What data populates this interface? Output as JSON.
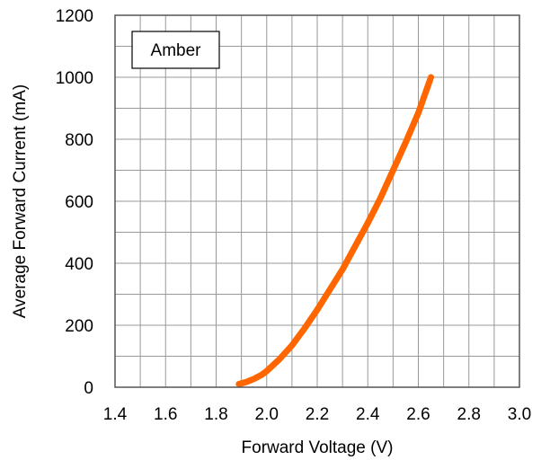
{
  "chart_data": {
    "type": "line",
    "title": "",
    "xlabel": "Forward Voltage (V)",
    "ylabel": "Average Forward Current (mA)",
    "xlim": [
      1.4,
      3.0
    ],
    "ylim": [
      0,
      1200
    ],
    "x_ticks": [
      1.4,
      1.6,
      1.8,
      2.0,
      2.2,
      2.4,
      2.6,
      2.8,
      3.0
    ],
    "x_tick_labels": [
      "1.4",
      "1.6",
      "1.8",
      "2.0",
      "2.2",
      "2.4",
      "2.6",
      "2.8",
      "3.0"
    ],
    "y_ticks": [
      0,
      200,
      400,
      600,
      800,
      1000,
      1200
    ],
    "y_tick_labels": [
      "0",
      "200",
      "400",
      "600",
      "800",
      "1000",
      "1200"
    ],
    "x_minor_step": 0.1,
    "y_minor_step": 100,
    "grid": true,
    "legend_label": "Amber",
    "legend_position": "top-left",
    "colors": {
      "series": "#ff6600",
      "grid": "#999999",
      "axis": "#555555"
    },
    "series": [
      {
        "x": [
          1.89,
          1.92,
          1.95,
          1.98,
          2.0,
          2.05,
          2.1,
          2.15,
          2.2,
          2.25,
          2.3,
          2.35,
          2.4,
          2.45,
          2.5,
          2.55,
          2.6,
          2.65
        ],
        "y": [
          10,
          17,
          27,
          40,
          52,
          90,
          135,
          190,
          250,
          315,
          380,
          455,
          530,
          610,
          700,
          790,
          885,
          1000
        ]
      }
    ]
  }
}
